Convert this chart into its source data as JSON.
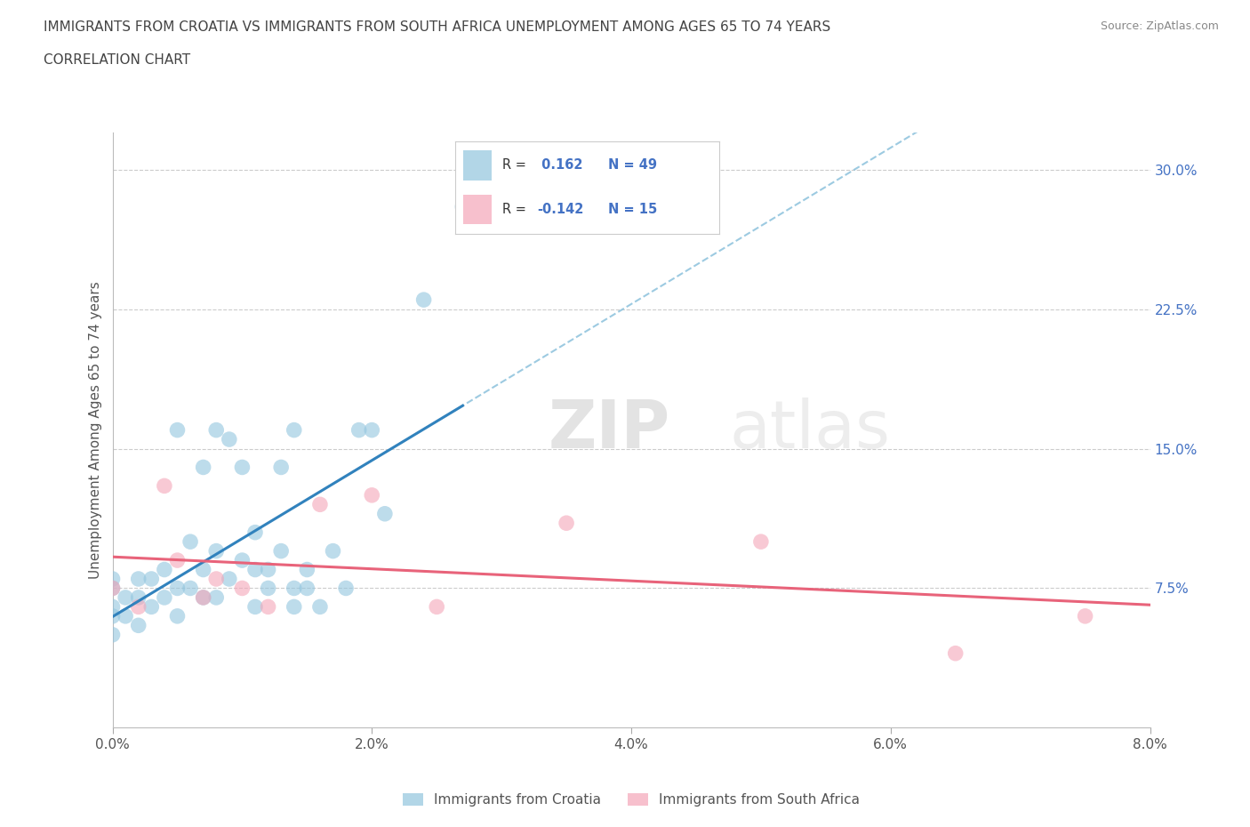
{
  "title_line1": "IMMIGRANTS FROM CROATIA VS IMMIGRANTS FROM SOUTH AFRICA UNEMPLOYMENT AMONG AGES 65 TO 74 YEARS",
  "title_line2": "CORRELATION CHART",
  "source_text": "Source: ZipAtlas.com",
  "ylabel": "Unemployment Among Ages 65 to 74 years",
  "xlim": [
    0.0,
    0.08
  ],
  "ylim": [
    0.0,
    0.32
  ],
  "xtick_vals": [
    0.0,
    0.02,
    0.04,
    0.06,
    0.08
  ],
  "xticklabels": [
    "0.0%",
    "2.0%",
    "4.0%",
    "6.0%",
    "8.0%"
  ],
  "ytick_right_vals": [
    0.075,
    0.15,
    0.225,
    0.3
  ],
  "ytick_right_labels": [
    "7.5%",
    "15.0%",
    "22.5%",
    "30.0%"
  ],
  "croatia_color": "#92c5de",
  "croatia_line_color": "#3182bd",
  "south_africa_color": "#f4a6b8",
  "south_africa_line_color": "#e8637a",
  "dashed_line_color": "#92c5de",
  "croatia_R": 0.162,
  "croatia_N": 49,
  "south_africa_R": -0.142,
  "south_africa_N": 15,
  "watermark_top": "ZIP",
  "watermark_bottom": "atlas",
  "croatia_x": [
    0.0,
    0.0,
    0.0,
    0.0,
    0.0,
    0.001,
    0.001,
    0.002,
    0.002,
    0.002,
    0.003,
    0.003,
    0.004,
    0.004,
    0.005,
    0.005,
    0.005,
    0.006,
    0.006,
    0.007,
    0.007,
    0.007,
    0.008,
    0.008,
    0.008,
    0.009,
    0.009,
    0.01,
    0.01,
    0.011,
    0.011,
    0.011,
    0.012,
    0.012,
    0.013,
    0.013,
    0.014,
    0.014,
    0.014,
    0.015,
    0.015,
    0.016,
    0.017,
    0.018,
    0.019,
    0.02,
    0.021,
    0.024,
    0.027
  ],
  "croatia_y": [
    0.05,
    0.06,
    0.065,
    0.075,
    0.08,
    0.06,
    0.07,
    0.055,
    0.07,
    0.08,
    0.065,
    0.08,
    0.07,
    0.085,
    0.06,
    0.075,
    0.16,
    0.075,
    0.1,
    0.07,
    0.085,
    0.14,
    0.07,
    0.095,
    0.16,
    0.08,
    0.155,
    0.09,
    0.14,
    0.065,
    0.085,
    0.105,
    0.075,
    0.085,
    0.095,
    0.14,
    0.065,
    0.075,
    0.16,
    0.075,
    0.085,
    0.065,
    0.095,
    0.075,
    0.16,
    0.16,
    0.115,
    0.23,
    0.28
  ],
  "sa_x": [
    0.0,
    0.002,
    0.004,
    0.005,
    0.007,
    0.008,
    0.01,
    0.012,
    0.016,
    0.02,
    0.025,
    0.035,
    0.05,
    0.065,
    0.075
  ],
  "sa_y": [
    0.075,
    0.065,
    0.13,
    0.09,
    0.07,
    0.08,
    0.075,
    0.065,
    0.12,
    0.125,
    0.065,
    0.11,
    0.1,
    0.04,
    0.06
  ],
  "legend_R_color": "#4472c4",
  "legend_N_color": "#4472c4"
}
